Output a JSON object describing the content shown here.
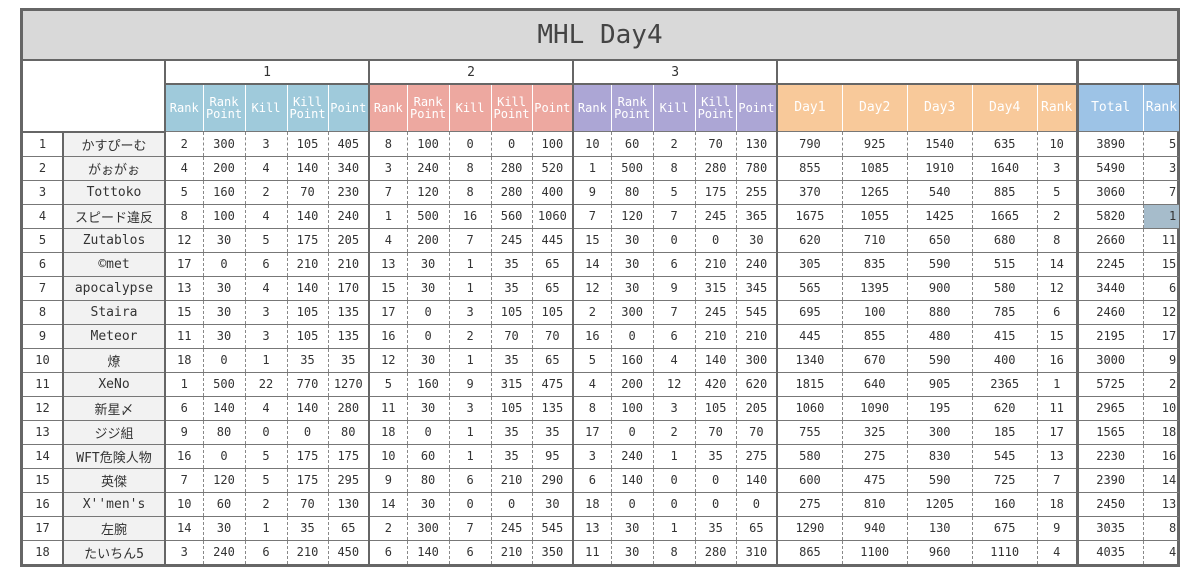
{
  "title": "MHL Day4",
  "table": {
    "groups": [
      "1",
      "2",
      "3"
    ],
    "columns": [
      "Rank",
      "Rank Point",
      "Kill",
      "Kill Point",
      "Point",
      "Rank",
      "Rank Point",
      "Kill",
      "Kill Point",
      "Point",
      "Rank",
      "Rank Point",
      "Kill",
      "Kill Point",
      "Point",
      "Day1",
      "Day2",
      "Day3",
      "Day4",
      "Rank",
      "Total",
      "Rank"
    ],
    "rows": [
      [
        "1",
        "かすぴーむ",
        2,
        300,
        3,
        105,
        405,
        8,
        100,
        0,
        0,
        100,
        10,
        60,
        2,
        70,
        130,
        790,
        925,
        1540,
        635,
        10,
        3890,
        5
      ],
      [
        "2",
        "がぉがぉ",
        4,
        200,
        4,
        140,
        340,
        3,
        240,
        8,
        280,
        520,
        1,
        500,
        8,
        280,
        780,
        855,
        1085,
        1910,
        1640,
        3,
        5490,
        3
      ],
      [
        "3",
        "Tottoko",
        5,
        160,
        2,
        70,
        230,
        7,
        120,
        8,
        280,
        400,
        9,
        80,
        5,
        175,
        255,
        370,
        1265,
        540,
        885,
        5,
        3060,
        7
      ],
      [
        "4",
        "スピード違反",
        8,
        100,
        4,
        140,
        240,
        1,
        500,
        16,
        560,
        1060,
        7,
        120,
        7,
        245,
        365,
        1675,
        1055,
        1425,
        1665,
        2,
        5820,
        1
      ],
      [
        "5",
        "Zutablos",
        12,
        30,
        5,
        175,
        205,
        4,
        200,
        7,
        245,
        445,
        15,
        30,
        0,
        0,
        30,
        620,
        710,
        650,
        680,
        8,
        2660,
        11
      ],
      [
        "6",
        "©met",
        17,
        0,
        6,
        210,
        210,
        13,
        30,
        1,
        35,
        65,
        14,
        30,
        6,
        210,
        240,
        305,
        835,
        590,
        515,
        14,
        2245,
        15
      ],
      [
        "7",
        "apocalypse",
        13,
        30,
        4,
        140,
        170,
        15,
        30,
        1,
        35,
        65,
        12,
        30,
        9,
        315,
        345,
        565,
        1395,
        900,
        580,
        12,
        3440,
        6
      ],
      [
        "8",
        "Staira",
        15,
        30,
        3,
        105,
        135,
        17,
        0,
        3,
        105,
        105,
        2,
        300,
        7,
        245,
        545,
        695,
        100,
        880,
        785,
        6,
        2460,
        12
      ],
      [
        "9",
        "Meteor",
        11,
        30,
        3,
        105,
        135,
        16,
        0,
        2,
        70,
        70,
        16,
        0,
        6,
        210,
        210,
        445,
        855,
        480,
        415,
        15,
        2195,
        17
      ],
      [
        "10",
        "燎",
        18,
        0,
        1,
        35,
        35,
        12,
        30,
        1,
        35,
        65,
        5,
        160,
        4,
        140,
        300,
        1340,
        670,
        590,
        400,
        16,
        3000,
        9
      ],
      [
        "11",
        "XeNo",
        1,
        500,
        22,
        770,
        1270,
        5,
        160,
        9,
        315,
        475,
        4,
        200,
        12,
        420,
        620,
        1815,
        640,
        905,
        2365,
        1,
        5725,
        2
      ],
      [
        "12",
        "新星〆",
        6,
        140,
        4,
        140,
        280,
        11,
        30,
        3,
        105,
        135,
        8,
        100,
        3,
        105,
        205,
        1060,
        1090,
        195,
        620,
        11,
        2965,
        10
      ],
      [
        "13",
        "ジジ組",
        9,
        80,
        0,
        0,
        80,
        18,
        0,
        1,
        35,
        35,
        17,
        0,
        2,
        70,
        70,
        755,
        325,
        300,
        185,
        17,
        1565,
        18
      ],
      [
        "14",
        "WFT危険人物",
        16,
        0,
        5,
        175,
        175,
        10,
        60,
        1,
        35,
        95,
        3,
        240,
        1,
        35,
        275,
        580,
        275,
        830,
        545,
        13,
        2230,
        16
      ],
      [
        "15",
        "英傑",
        7,
        120,
        5,
        175,
        295,
        9,
        80,
        6,
        210,
        290,
        6,
        140,
        0,
        0,
        140,
        600,
        475,
        590,
        725,
        7,
        2390,
        14
      ],
      [
        "16",
        "X''men's",
        10,
        60,
        2,
        70,
        130,
        14,
        30,
        0,
        0,
        30,
        18,
        0,
        0,
        0,
        0,
        275,
        810,
        1205,
        160,
        18,
        2450,
        13
      ],
      [
        "17",
        "左腕",
        14,
        30,
        1,
        35,
        65,
        2,
        300,
        7,
        245,
        545,
        13,
        30,
        1,
        35,
        65,
        1290,
        940,
        130,
        675,
        9,
        3035,
        8
      ],
      [
        "18",
        "たいちん5",
        3,
        240,
        6,
        210,
        450,
        6,
        140,
        6,
        210,
        350,
        11,
        30,
        8,
        280,
        310,
        865,
        1100,
        960,
        1110,
        4,
        4035,
        4
      ]
    ]
  }
}
